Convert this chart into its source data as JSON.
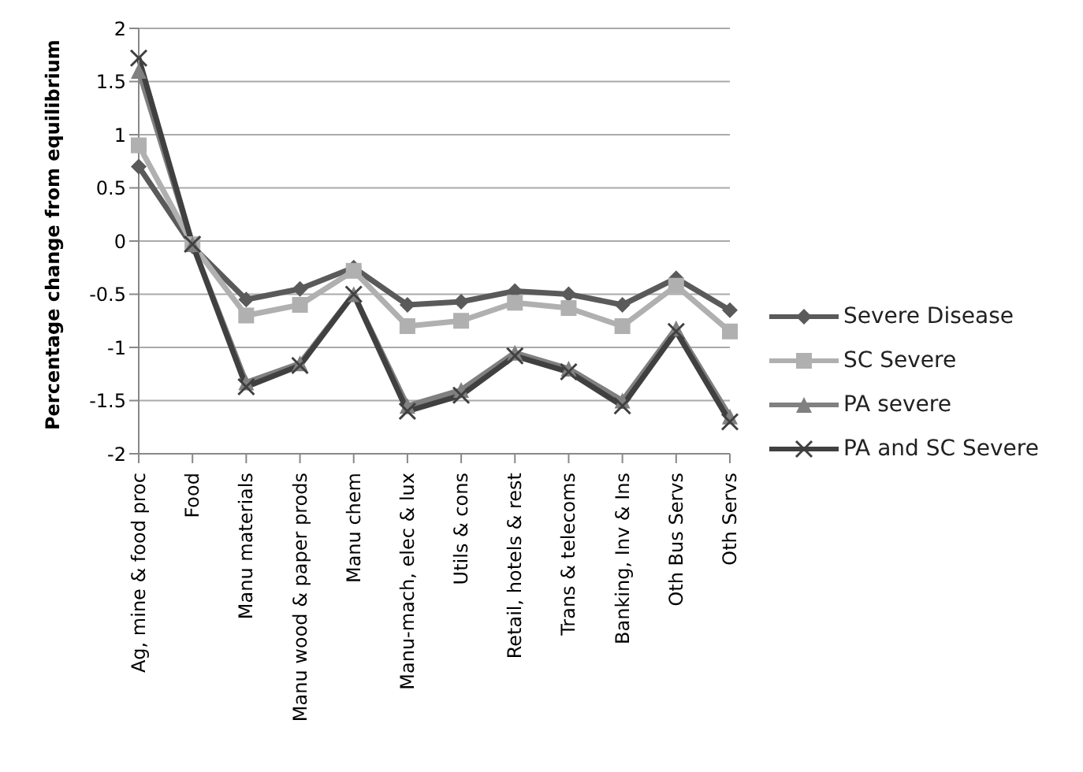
{
  "chart_data": {
    "type": "line",
    "ylabel": "Percentage change from equilibrium",
    "categories": [
      "Ag, mine & food proc",
      "Food",
      "Manu materials",
      "Manu wood & paper prods",
      "Manu chem",
      "Manu-mach, elec & lux",
      "Utils & cons",
      "Retail, hotels & rest",
      "Trans & telecoms",
      "Banking, Inv & Ins",
      "Oth Bus Servs",
      "Oth Servs"
    ],
    "series": [
      {
        "name": "Severe Disease",
        "color": "#5a5a5a",
        "marker": "diamond",
        "values": [
          0.7,
          -0.05,
          -0.55,
          -0.45,
          -0.25,
          -0.6,
          -0.57,
          -0.47,
          -0.5,
          -0.6,
          -0.35,
          -0.65
        ]
      },
      {
        "name": "SC Severe",
        "color": "#b0b0b0",
        "marker": "square",
        "values": [
          0.9,
          -0.03,
          -0.7,
          -0.6,
          -0.28,
          -0.8,
          -0.75,
          -0.58,
          -0.63,
          -0.8,
          -0.42,
          -0.85
        ]
      },
      {
        "name": "PA severe",
        "color": "#808080",
        "marker": "triangle",
        "values": [
          1.6,
          -0.03,
          -1.33,
          -1.15,
          -0.5,
          -1.55,
          -1.4,
          -1.05,
          -1.2,
          -1.5,
          -0.82,
          -1.65
        ]
      },
      {
        "name": "PA and SC Severe",
        "color": "#404040",
        "marker": "cross",
        "values": [
          1.72,
          -0.03,
          -1.37,
          -1.17,
          -0.5,
          -1.6,
          -1.45,
          -1.08,
          -1.23,
          -1.55,
          -0.85,
          -1.7
        ]
      }
    ],
    "ylim": [
      -2,
      2
    ],
    "yticks": [
      -2,
      -1.5,
      -1,
      -0.5,
      0,
      0.5,
      1,
      1.5,
      2
    ],
    "grid": "y",
    "legend": "right"
  }
}
